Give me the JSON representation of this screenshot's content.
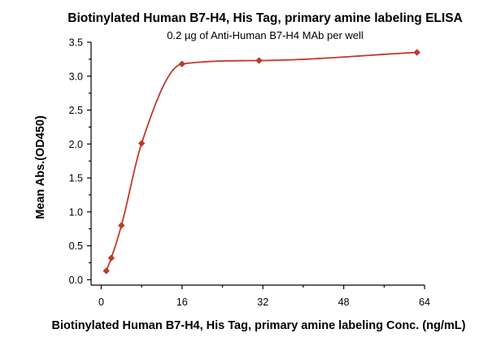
{
  "chart_data": {
    "type": "scatter",
    "title": "Biotinylated Human B7-H4, His Tag, primary amine labeling ELISA",
    "subtitle": "0.2 µg of Anti-Human B7-H4 MAb per well",
    "xlabel": "Biotinylated Human B7-H4, His Tag, primary amine labeling Conc. (ng/mL)",
    "ylabel": "Mean Abs.(OD450)",
    "xlim": [
      -2,
      64
    ],
    "ylim": [
      -0.08,
      3.5
    ],
    "x_ticks": [
      0,
      16,
      32,
      48,
      64
    ],
    "x_tick_labels": [
      "0",
      "16",
      "32",
      "48",
      "64"
    ],
    "y_ticks": [
      0.0,
      0.5,
      1.0,
      1.5,
      2.0,
      2.5,
      3.0,
      3.5
    ],
    "y_tick_labels": [
      "0.0",
      "0.5",
      "1.0",
      "1.5",
      "2.0",
      "2.5",
      "3.0",
      "3.5"
    ],
    "grid": false,
    "legend": "none",
    "series": [
      {
        "x": [
          1,
          2,
          4,
          8,
          16,
          31.25,
          62.5
        ],
        "y": [
          0.13,
          0.32,
          0.8,
          2.01,
          3.18,
          3.23,
          3.35
        ],
        "color": "#c0392b",
        "marker": "diamond",
        "fit": "sigmoidal"
      }
    ]
  }
}
